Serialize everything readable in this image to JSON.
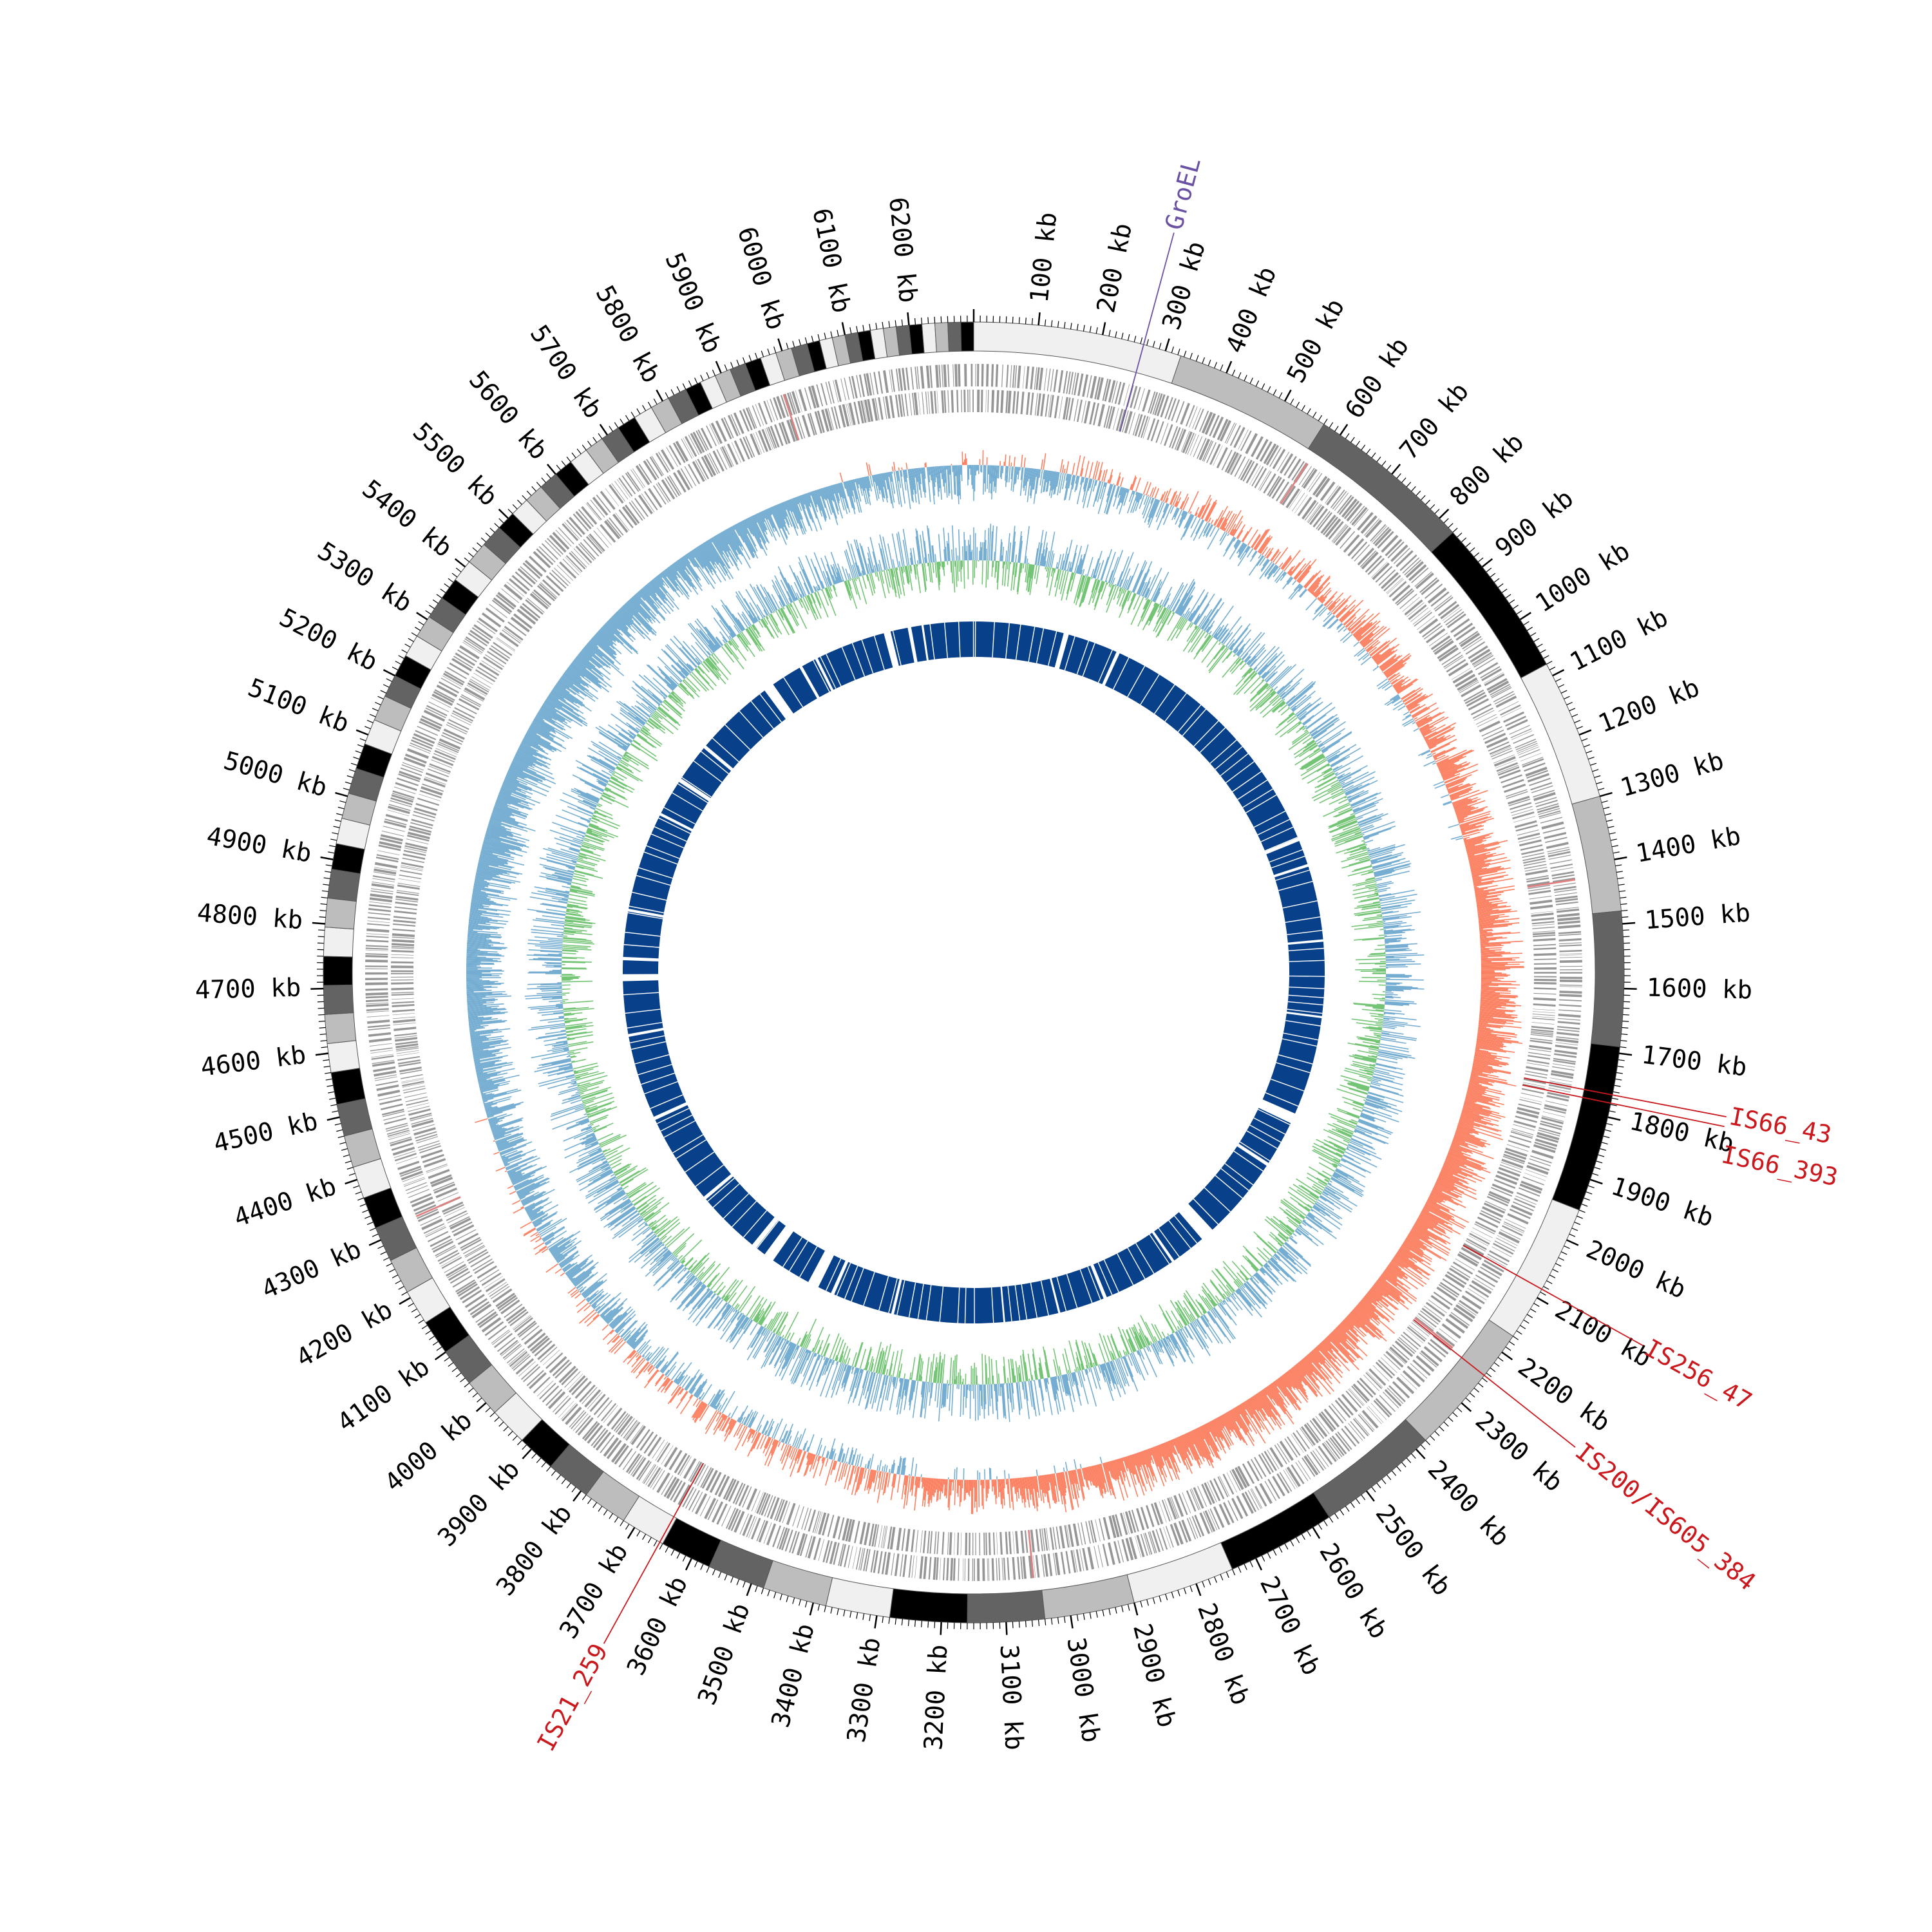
{
  "genome": {
    "length_kb": 6300,
    "tick_major_kb": 100,
    "tick_minor_kb": 10,
    "tick_unit": "kb",
    "tick_values_kb": [
      100,
      200,
      300,
      400,
      500,
      600,
      700,
      800,
      900,
      1000,
      1100,
      1200,
      1300,
      1400,
      1500,
      1600,
      1700,
      1800,
      1900,
      2000,
      2100,
      2200,
      2300,
      2400,
      2500,
      2600,
      2700,
      2800,
      2900,
      3000,
      3100,
      3200,
      3300,
      3400,
      3500,
      3600,
      3700,
      3800,
      3900,
      4000,
      4100,
      4200,
      4300,
      4400,
      4500,
      4600,
      4700,
      4800,
      4900,
      5000,
      5100,
      5200,
      5300,
      5400,
      5500,
      5600,
      5700,
      5800,
      5900,
      6000,
      6100,
      6200
    ]
  },
  "tracks": {
    "ideogram_shades": [
      "#f0f0f0",
      "#bdbdbd",
      "#636363",
      "#000000"
    ],
    "contig_segments_kb": [
      [
        0,
        325
      ],
      [
        325,
        570
      ],
      [
        570,
        830
      ],
      [
        830,
        1080
      ],
      [
        1080,
        1300
      ],
      [
        1300,
        1480
      ],
      [
        1480,
        1690
      ],
      [
        1690,
        1950
      ],
      [
        1950,
        2170
      ],
      [
        2170,
        2380
      ],
      [
        2380,
        2570
      ],
      [
        2570,
        2740
      ],
      [
        2740,
        2900
      ],
      [
        2900,
        3040
      ],
      [
        3040,
        3160
      ],
      [
        3160,
        3280
      ],
      [
        3280,
        3380
      ],
      [
        3380,
        3480
      ],
      [
        3480,
        3570
      ],
      [
        3570,
        3650
      ],
      [
        3650,
        3720
      ],
      [
        3720,
        3790
      ],
      [
        3790,
        3860
      ],
      [
        3860,
        3920
      ],
      [
        3920,
        3980
      ],
      [
        3980,
        4040
      ],
      [
        4040,
        4100
      ],
      [
        4100,
        4155
      ],
      [
        4155,
        4210
      ],
      [
        4210,
        4265
      ],
      [
        4265,
        4320
      ],
      [
        4320,
        4370
      ],
      [
        4370,
        4420
      ],
      [
        4420,
        4470
      ],
      [
        4470,
        4520
      ],
      [
        4520,
        4570
      ],
      [
        4570,
        4615
      ],
      [
        4615,
        4660
      ],
      [
        4660,
        4705
      ],
      [
        4705,
        4750
      ],
      [
        4750,
        4795
      ],
      [
        4795,
        4840
      ],
      [
        4840,
        4885
      ],
      [
        4885,
        4925
      ],
      [
        4925,
        4965
      ],
      [
        4965,
        5005
      ],
      [
        5005,
        5045
      ],
      [
        5045,
        5085
      ],
      [
        5085,
        5125
      ],
      [
        5125,
        5165
      ],
      [
        5165,
        5200
      ],
      [
        5200,
        5235
      ],
      [
        5235,
        5270
      ],
      [
        5270,
        5305
      ],
      [
        5305,
        5340
      ],
      [
        5340,
        5375
      ],
      [
        5375,
        5410
      ],
      [
        5410,
        5445
      ],
      [
        5445,
        5480
      ],
      [
        5480,
        5510
      ],
      [
        5510,
        5540
      ],
      [
        5540,
        5570
      ],
      [
        5570,
        5600
      ],
      [
        5600,
        5630
      ],
      [
        5630,
        5660
      ],
      [
        5660,
        5690
      ],
      [
        5690,
        5720
      ],
      [
        5720,
        5750
      ],
      [
        5750,
        5780
      ],
      [
        5780,
        5810
      ],
      [
        5810,
        5840
      ],
      [
        5840,
        5865
      ],
      [
        5865,
        5890
      ],
      [
        5890,
        5915
      ],
      [
        5915,
        5940
      ],
      [
        5940,
        5965
      ],
      [
        5965,
        5990
      ],
      [
        5990,
        6015
      ],
      [
        6015,
        6040
      ],
      [
        6040,
        6060
      ],
      [
        6060,
        6080
      ],
      [
        6080,
        6100
      ],
      [
        6100,
        6120
      ],
      [
        6120,
        6140
      ],
      [
        6140,
        6160
      ],
      [
        6160,
        6180
      ],
      [
        6180,
        6200
      ],
      [
        6200,
        6220
      ],
      [
        6220,
        6240
      ],
      [
        6240,
        6260
      ],
      [
        6260,
        6280
      ],
      [
        6280,
        6300
      ]
    ],
    "gene_color": "#969696",
    "gene_highlight_color": "#e08080",
    "gc_skew_positive_color": "#fb8061",
    "gc_skew_negative_color": "#74add1",
    "gc_content_positive_color": "#74c476",
    "gc_content_negative_color": "#74add1",
    "core_color": "#08408a",
    "core_gaps_kb": [
      [
        260,
        275
      ],
      [
        420,
        430
      ],
      [
        1180,
        1190
      ],
      [
        1260,
        1268
      ],
      [
        1480,
        1487
      ],
      [
        1700,
        1706
      ],
      [
        1990,
        2020
      ],
      [
        2150,
        2160
      ],
      [
        2400,
        2440
      ],
      [
        2540,
        2548
      ],
      [
        2760,
        2770
      ],
      [
        2900,
        2906
      ],
      [
        3060,
        3065
      ],
      [
        3380,
        3388
      ],
      [
        3560,
        3570
      ],
      [
        3610,
        3640
      ],
      [
        3760,
        3790
      ],
      [
        3820,
        3835
      ],
      [
        4020,
        4030
      ],
      [
        4290,
        4300
      ],
      [
        4540,
        4548
      ],
      [
        4700,
        4720
      ],
      [
        4760,
        4768
      ],
      [
        4900,
        4908
      ],
      [
        5190,
        5198
      ],
      [
        5300,
        5312
      ],
      [
        5420,
        5430
      ],
      [
        5660,
        5690
      ],
      [
        5780,
        5788
      ],
      [
        5830,
        5838
      ],
      [
        6040,
        6060
      ],
      [
        6110,
        6118
      ],
      [
        6150,
        6156
      ]
    ]
  },
  "annotations": [
    {
      "label": "GroEL",
      "position_kb": 265,
      "color": "#6a51a3"
    },
    {
      "label": "IS66_43",
      "position_kb": 1765,
      "color": "#cb181d"
    },
    {
      "label": "IS66_393",
      "position_kb": 1778,
      "color": "#cb181d"
    },
    {
      "label": "IS256_47",
      "position_kb": 2085,
      "color": "#cb181d"
    },
    {
      "label": "IS200/IS605_384",
      "position_kb": 2245,
      "color": "#cb181d"
    },
    {
      "label": "IS21_259",
      "position_kb": 3655,
      "color": "#cb181d"
    }
  ]
}
